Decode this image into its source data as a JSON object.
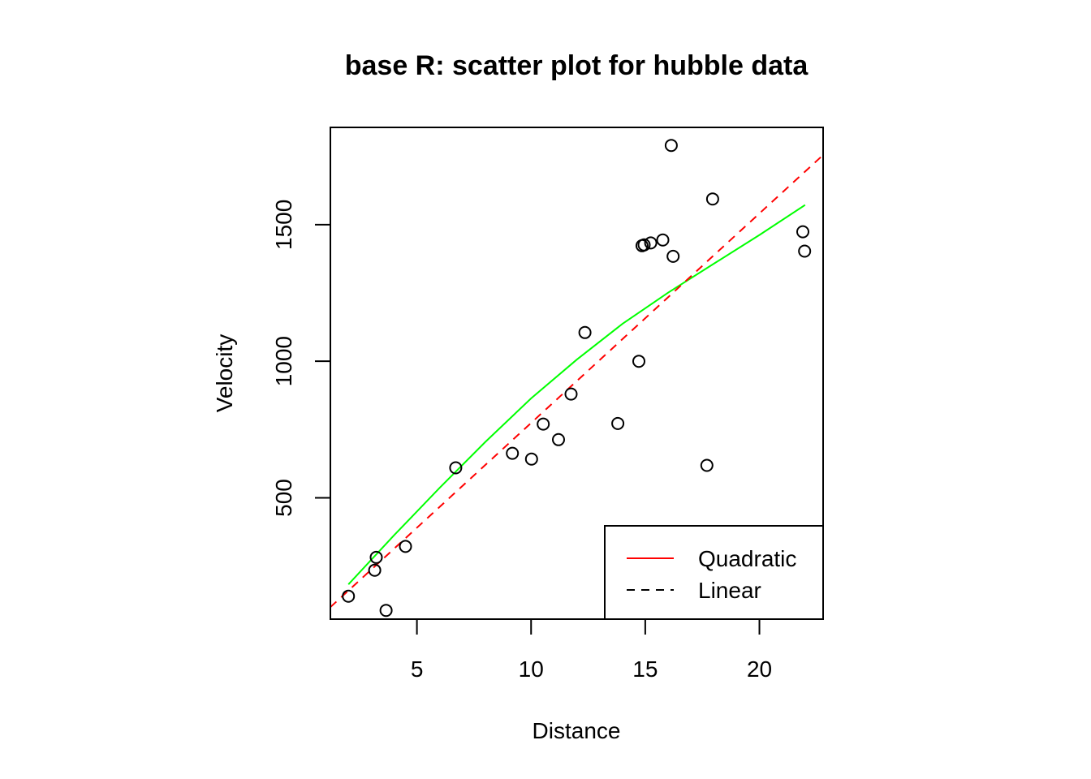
{
  "chart_data": {
    "type": "scatter",
    "title": "base R: scatter plot for hubble data",
    "xlabel": "Distance",
    "ylabel": "Velocity",
    "xlim": [
      1.21,
      22.79
    ],
    "ylim": [
      56,
      1856
    ],
    "x_ticks": [
      "5",
      "10",
      "15",
      "20"
    ],
    "y_ticks": [
      "500",
      "1000",
      "1500"
    ],
    "grid": false,
    "legend_position": "bottom-right",
    "points": [
      {
        "x": 2.0,
        "y": 140
      },
      {
        "x": 3.15,
        "y": 235
      },
      {
        "x": 3.22,
        "y": 282
      },
      {
        "x": 3.65,
        "y": 88
      },
      {
        "x": 4.5,
        "y": 322
      },
      {
        "x": 6.7,
        "y": 610
      },
      {
        "x": 9.18,
        "y": 663
      },
      {
        "x": 10.02,
        "y": 642
      },
      {
        "x": 10.53,
        "y": 770
      },
      {
        "x": 11.2,
        "y": 713
      },
      {
        "x": 11.75,
        "y": 880
      },
      {
        "x": 12.36,
        "y": 1105
      },
      {
        "x": 13.8,
        "y": 772
      },
      {
        "x": 14.72,
        "y": 1000
      },
      {
        "x": 14.86,
        "y": 1423
      },
      {
        "x": 14.95,
        "y": 1426
      },
      {
        "x": 15.24,
        "y": 1433
      },
      {
        "x": 15.77,
        "y": 1444
      },
      {
        "x": 16.14,
        "y": 1790
      },
      {
        "x": 16.22,
        "y": 1384
      },
      {
        "x": 17.7,
        "y": 619
      },
      {
        "x": 17.95,
        "y": 1594
      },
      {
        "x": 21.9,
        "y": 1474
      },
      {
        "x": 21.98,
        "y": 1403
      }
    ],
    "series": [
      {
        "name": "Quadratic",
        "color": "#00ff00",
        "style": "solid",
        "x": [
          2.0,
          4.0,
          6.0,
          8.0,
          10.0,
          12.0,
          14.0,
          16.0,
          18.0,
          20.0,
          22.0
        ],
        "y": [
          183,
          363,
          537,
          705,
          864,
          1006,
          1137,
          1251,
          1357,
          1462,
          1572
        ]
      },
      {
        "name": "Linear",
        "color": "#ff0000",
        "style": "dashed",
        "x": [
          1.21,
          22.79
        ],
        "y": [
          100,
          1755
        ]
      }
    ],
    "legend": [
      {
        "label": "Quadratic",
        "color": "#ff0000",
        "style": "solid"
      },
      {
        "label": "Linear",
        "color": "#000000",
        "style": "dashed"
      }
    ]
  }
}
